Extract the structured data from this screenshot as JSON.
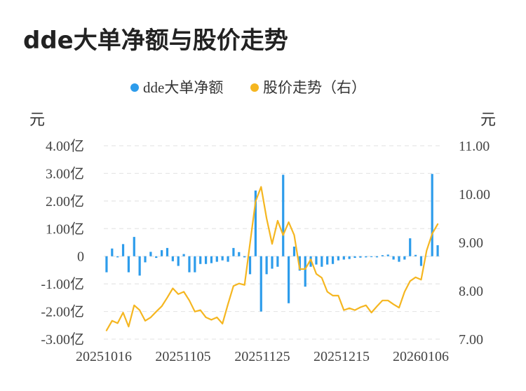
{
  "chart_data": {
    "title": "dde大单净额与股价走势",
    "type": "bar+line",
    "legend": [
      {
        "name": "dde大单净额",
        "color": "#2d9ceb"
      },
      {
        "name": "股价走势（右）",
        "color": "#f5b620"
      }
    ],
    "legend_position": "top-center",
    "ylabel_left": "元",
    "ylabel_right": "元",
    "y_left_ticks": [
      "4.00亿",
      "3.00亿",
      "2.00亿",
      "1.00亿",
      "0",
      "-1.00亿",
      "-2.00亿",
      "-3.00亿"
    ],
    "y_left_range": [
      -3.0,
      4.0
    ],
    "y_right_ticks": [
      "11.00",
      "10.00",
      "9.00",
      "8.00",
      "7.00"
    ],
    "y_right_range": [
      7.0,
      11.0
    ],
    "x_tick_labels": [
      "20251016",
      "20251105",
      "20251125",
      "20251215",
      "20260106"
    ],
    "grid": true,
    "series": [
      {
        "name": "dde大单净额",
        "type": "bar",
        "unit": "亿",
        "values": [
          -0.58,
          0.28,
          -0.04,
          0.44,
          -0.58,
          0.7,
          -0.7,
          -0.22,
          0.16,
          -0.06,
          0.22,
          0.3,
          -0.18,
          -0.35,
          0.08,
          -0.58,
          -0.58,
          -0.28,
          -0.28,
          -0.25,
          -0.2,
          -0.15,
          -0.2,
          0.3,
          0.15,
          -0.04,
          -0.65,
          2.38,
          -2.0,
          -0.65,
          -0.45,
          -0.38,
          2.95,
          -1.7,
          0.35,
          -0.52,
          -1.1,
          -0.38,
          -0.3,
          -0.38,
          -0.3,
          -0.28,
          -0.15,
          -0.12,
          -0.1,
          -0.06,
          -0.05,
          -0.04,
          -0.03,
          -0.04,
          0.04,
          0.06,
          -0.12,
          -0.2,
          -0.12,
          0.65,
          0.05,
          -0.35,
          0.0,
          2.98,
          0.4
        ]
      },
      {
        "name": "股价走势（右）",
        "type": "line",
        "values": [
          7.18,
          7.38,
          7.33,
          7.55,
          7.26,
          7.7,
          7.6,
          7.38,
          7.45,
          7.57,
          7.68,
          7.86,
          8.05,
          7.93,
          7.98,
          7.8,
          7.57,
          7.6,
          7.45,
          7.4,
          7.45,
          7.32,
          7.72,
          8.1,
          8.15,
          8.12,
          8.98,
          9.85,
          10.15,
          9.5,
          8.97,
          9.45,
          9.15,
          9.42,
          9.15,
          8.45,
          8.45,
          8.65,
          8.35,
          8.27,
          7.98,
          7.9,
          7.9,
          7.6,
          7.64,
          7.6,
          7.66,
          7.7,
          7.55,
          7.68,
          7.8,
          7.8,
          7.72,
          7.65,
          7.98,
          8.2,
          8.28,
          8.23,
          8.83,
          9.18,
          9.38
        ]
      }
    ]
  }
}
